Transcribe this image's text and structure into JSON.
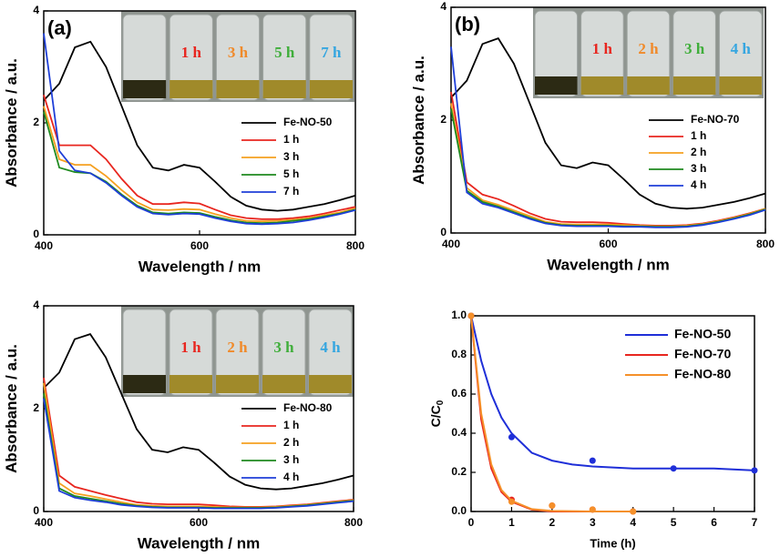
{
  "chart_data": [
    {
      "type": "line",
      "panel_label": "(a)",
      "xlabel": "Wavelength / nm",
      "ylabel": "Absorbance / a.u.",
      "xlim": [
        400,
        800
      ],
      "xticks": [
        400,
        600,
        800
      ],
      "ylim": [
        0,
        4
      ],
      "yticks": [
        0,
        2,
        4
      ],
      "legend": "center right",
      "inset_labels": [
        "1 h",
        "3 h",
        "5 h",
        "7 h"
      ],
      "inset_label_colors": [
        "#e8261f",
        "#f08a2a",
        "#3fae3a",
        "#35a6e0"
      ],
      "x": [
        400,
        420,
        440,
        460,
        480,
        500,
        520,
        540,
        560,
        580,
        600,
        620,
        640,
        660,
        680,
        700,
        720,
        740,
        760,
        780,
        800
      ],
      "series": [
        {
          "name": "Fe-NO-50",
          "color": "#000000",
          "values": [
            2.4,
            2.7,
            3.35,
            3.45,
            3.0,
            2.3,
            1.6,
            1.2,
            1.15,
            1.25,
            1.2,
            0.95,
            0.68,
            0.52,
            0.45,
            0.43,
            0.45,
            0.5,
            0.55,
            0.62,
            0.7
          ]
        },
        {
          "name": "1 h",
          "color": "#e8261f",
          "values": [
            2.5,
            1.6,
            1.6,
            1.6,
            1.35,
            1.0,
            0.7,
            0.55,
            0.55,
            0.58,
            0.56,
            0.45,
            0.35,
            0.3,
            0.28,
            0.28,
            0.3,
            0.33,
            0.38,
            0.44,
            0.5
          ]
        },
        {
          "name": "3 h",
          "color": "#f5a020",
          "values": [
            2.3,
            1.35,
            1.25,
            1.25,
            1.05,
            0.8,
            0.58,
            0.45,
            0.44,
            0.46,
            0.45,
            0.37,
            0.3,
            0.25,
            0.24,
            0.25,
            0.27,
            0.3,
            0.35,
            0.4,
            0.47
          ]
        },
        {
          "name": "5 h",
          "color": "#1f8a1f",
          "values": [
            2.2,
            1.2,
            1.12,
            1.1,
            0.95,
            0.72,
            0.52,
            0.4,
            0.38,
            0.4,
            0.39,
            0.32,
            0.26,
            0.22,
            0.21,
            0.22,
            0.25,
            0.28,
            0.33,
            0.38,
            0.45
          ]
        },
        {
          "name": "7 h",
          "color": "#1f3fd8",
          "values": [
            3.6,
            1.5,
            1.15,
            1.1,
            0.93,
            0.7,
            0.5,
            0.38,
            0.36,
            0.38,
            0.37,
            0.3,
            0.24,
            0.2,
            0.19,
            0.2,
            0.22,
            0.26,
            0.31,
            0.37,
            0.44
          ]
        }
      ]
    },
    {
      "type": "line",
      "panel_label": "(b)",
      "xlabel": "Wavelength / nm",
      "ylabel": "Absorbance / a.u.",
      "xlim": [
        400,
        800
      ],
      "xticks": [
        400,
        600,
        800
      ],
      "ylim": [
        0,
        4
      ],
      "yticks": [
        0,
        2,
        4
      ],
      "legend": "center right",
      "inset_labels": [
        "1 h",
        "2 h",
        "3 h",
        "4 h"
      ],
      "inset_label_colors": [
        "#e8261f",
        "#f08a2a",
        "#3fae3a",
        "#35a6e0"
      ],
      "x": [
        400,
        420,
        440,
        460,
        480,
        500,
        520,
        540,
        560,
        580,
        600,
        620,
        640,
        660,
        680,
        700,
        720,
        740,
        760,
        780,
        800
      ],
      "series": [
        {
          "name": "Fe-NO-70",
          "color": "#000000",
          "values": [
            2.4,
            2.7,
            3.35,
            3.45,
            3.0,
            2.3,
            1.6,
            1.2,
            1.15,
            1.25,
            1.2,
            0.95,
            0.68,
            0.52,
            0.45,
            0.43,
            0.45,
            0.5,
            0.55,
            0.62,
            0.7
          ]
        },
        {
          "name": "1 h",
          "color": "#e8261f",
          "values": [
            2.5,
            0.9,
            0.68,
            0.6,
            0.48,
            0.35,
            0.25,
            0.2,
            0.19,
            0.19,
            0.18,
            0.16,
            0.14,
            0.13,
            0.13,
            0.14,
            0.17,
            0.22,
            0.28,
            0.35,
            0.43
          ]
        },
        {
          "name": "2 h",
          "color": "#f5a020",
          "values": [
            2.3,
            0.8,
            0.58,
            0.5,
            0.4,
            0.3,
            0.2,
            0.16,
            0.15,
            0.15,
            0.15,
            0.14,
            0.13,
            0.12,
            0.12,
            0.13,
            0.16,
            0.21,
            0.27,
            0.34,
            0.43
          ]
        },
        {
          "name": "3 h",
          "color": "#1f8a1f",
          "values": [
            2.2,
            0.75,
            0.55,
            0.47,
            0.37,
            0.27,
            0.18,
            0.14,
            0.13,
            0.13,
            0.13,
            0.12,
            0.12,
            0.11,
            0.11,
            0.12,
            0.15,
            0.2,
            0.26,
            0.33,
            0.42
          ]
        },
        {
          "name": "4 h",
          "color": "#1f3fd8",
          "values": [
            3.3,
            0.72,
            0.52,
            0.45,
            0.35,
            0.25,
            0.17,
            0.13,
            0.12,
            0.12,
            0.12,
            0.11,
            0.11,
            0.1,
            0.1,
            0.11,
            0.14,
            0.19,
            0.25,
            0.32,
            0.41
          ]
        }
      ]
    },
    {
      "type": "line",
      "panel_label": "",
      "xlabel": "Wavelength / nm",
      "ylabel": "Absorbance / a.u.",
      "xlim": [
        400,
        800
      ],
      "xticks": [
        400,
        600,
        800
      ],
      "ylim": [
        0,
        4
      ],
      "yticks": [
        0,
        2,
        4
      ],
      "legend": "center right",
      "inset_labels": [
        "1 h",
        "2 h",
        "3 h",
        "4 h"
      ],
      "inset_label_colors": [
        "#e8261f",
        "#f08a2a",
        "#3fae3a",
        "#35a6e0"
      ],
      "x": [
        400,
        420,
        440,
        460,
        480,
        500,
        520,
        540,
        560,
        580,
        600,
        620,
        640,
        660,
        680,
        700,
        720,
        740,
        760,
        780,
        800
      ],
      "series": [
        {
          "name": "Fe-NO-80",
          "color": "#000000",
          "values": [
            2.4,
            2.7,
            3.35,
            3.45,
            3.0,
            2.3,
            1.6,
            1.2,
            1.15,
            1.25,
            1.2,
            0.95,
            0.68,
            0.52,
            0.45,
            0.43,
            0.45,
            0.5,
            0.55,
            0.62,
            0.7
          ]
        },
        {
          "name": "1 h",
          "color": "#e8261f",
          "values": [
            2.6,
            0.7,
            0.48,
            0.4,
            0.32,
            0.25,
            0.18,
            0.15,
            0.14,
            0.14,
            0.14,
            0.12,
            0.1,
            0.09,
            0.09,
            0.1,
            0.12,
            0.14,
            0.17,
            0.2,
            0.23
          ]
        },
        {
          "name": "2 h",
          "color": "#f5a020",
          "values": [
            2.5,
            0.55,
            0.35,
            0.3,
            0.24,
            0.18,
            0.13,
            0.11,
            0.1,
            0.1,
            0.1,
            0.09,
            0.08,
            0.08,
            0.08,
            0.09,
            0.11,
            0.13,
            0.16,
            0.19,
            0.22
          ]
        },
        {
          "name": "3 h",
          "color": "#1f8a1f",
          "values": [
            2.3,
            0.45,
            0.3,
            0.25,
            0.2,
            0.15,
            0.11,
            0.09,
            0.08,
            0.08,
            0.08,
            0.07,
            0.07,
            0.07,
            0.07,
            0.08,
            0.1,
            0.12,
            0.15,
            0.18,
            0.21
          ]
        },
        {
          "name": "4 h",
          "color": "#1f3fd8",
          "values": [
            2.2,
            0.4,
            0.27,
            0.22,
            0.18,
            0.13,
            0.1,
            0.08,
            0.07,
            0.07,
            0.07,
            0.06,
            0.06,
            0.06,
            0.06,
            0.07,
            0.09,
            0.11,
            0.14,
            0.17,
            0.2
          ]
        }
      ]
    },
    {
      "type": "scatter",
      "xlabel": "Time (h)",
      "ylabel": "C/C",
      "ylabel_sub": "0",
      "xlim": [
        0,
        7
      ],
      "xticks": [
        0,
        1,
        2,
        3,
        4,
        5,
        6,
        7
      ],
      "ylim": [
        0,
        1
      ],
      "yticks": [
        {
          "value": 0,
          "label": "0.0"
        },
        0.2,
        0.4,
        0.6,
        0.8,
        {
          "value": 1,
          "label": "1.0"
        }
      ],
      "legend": "upper right",
      "series": [
        {
          "name": "Fe-NO-50",
          "color": "#1f2fd8",
          "x": [
            0,
            1,
            3,
            5,
            7
          ],
          "values": [
            1,
            0.38,
            0.26,
            0.22,
            0.21
          ],
          "fit": {
            "x": [
              0,
              0.25,
              0.5,
              0.75,
              1,
              1.5,
              2,
              2.5,
              3,
              4,
              5,
              6,
              7
            ],
            "values": [
              1,
              0.77,
              0.6,
              0.48,
              0.4,
              0.3,
              0.26,
              0.24,
              0.23,
              0.22,
              0.22,
              0.22,
              0.21
            ]
          }
        },
        {
          "name": "Fe-NO-70",
          "color": "#e8261f",
          "x": [
            0,
            1,
            2,
            3,
            4
          ],
          "values": [
            1,
            0.06,
            0.03,
            0.01,
            0
          ],
          "fit": {
            "x": [
              0,
              0.25,
              0.5,
              0.75,
              1,
              1.5,
              2,
              3,
              4
            ],
            "values": [
              1,
              0.47,
              0.22,
              0.1,
              0.05,
              0.01,
              0,
              0,
              0
            ]
          }
        },
        {
          "name": "Fe-NO-80",
          "color": "#f5902a",
          "x": [
            0,
            1,
            2,
            3,
            4
          ],
          "values": [
            1,
            0.05,
            0.03,
            0.01,
            0
          ],
          "fit": {
            "x": [
              0,
              0.25,
              0.5,
              0.75,
              1,
              1.5,
              2,
              3,
              4
            ],
            "values": [
              1,
              0.5,
              0.24,
              0.11,
              0.055,
              0.012,
              0.003,
              0,
              0
            ]
          }
        }
      ]
    }
  ]
}
